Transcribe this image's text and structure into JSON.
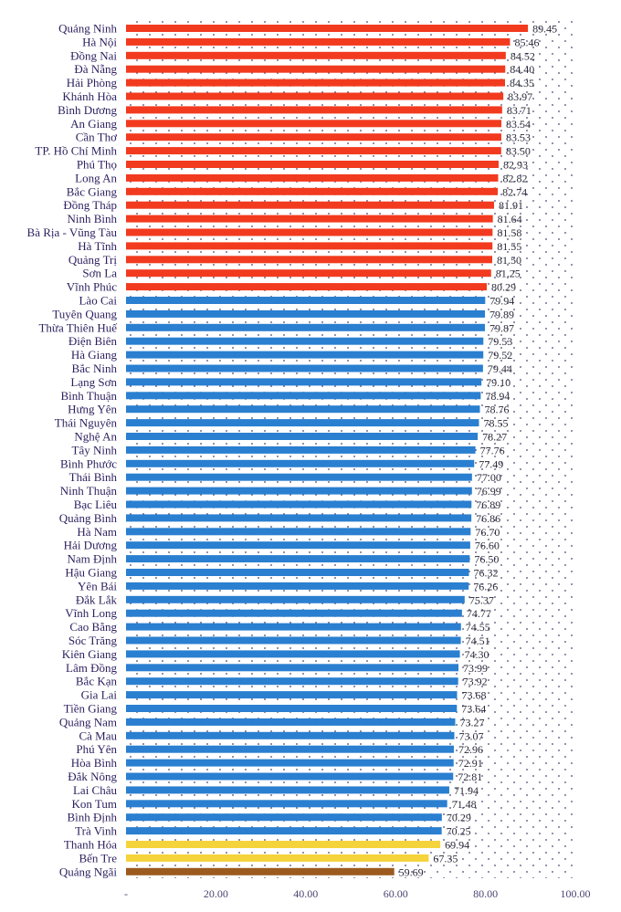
{
  "chart_data": {
    "type": "bar",
    "orientation": "horizontal",
    "title": "",
    "xlabel": "",
    "ylabel": "",
    "xlim": [
      0,
      100
    ],
    "x_ticks": [
      0,
      20,
      40,
      60,
      80,
      100
    ],
    "x_tick_labels": [
      "-",
      "20.00",
      "40.00",
      "60.00",
      "80.00",
      "100.00"
    ],
    "grid": false,
    "legend": "none",
    "colors": {
      "red": "#f23a1f",
      "blue": "#2a7fd0",
      "yellow": "#f5d33a",
      "brown": "#9c5a1e",
      "label": "#2c1f5e"
    },
    "categories": [
      "Quảng Ninh",
      "Hà Nội",
      "Đồng Nai",
      "Đà Nẵng",
      "Hải Phòng",
      "Khánh Hòa",
      "Bình Dương",
      "An Giang",
      "Cần Thơ",
      "TP. Hồ Chí Minh",
      "Phú Thọ",
      "Long An",
      "Bắc Giang",
      "Đồng Tháp",
      "Ninh Bình",
      "Bà Rịa - Vũng Tàu",
      "Hà Tĩnh",
      "Quảng Trị",
      "Sơn La",
      "Vĩnh Phúc",
      "Lào Cai",
      "Tuyên Quang",
      "Thừa Thiên Huế",
      "Điện Biên",
      "Hà Giang",
      "Bắc Ninh",
      "Lạng Sơn",
      "Bình Thuận",
      "Hưng Yên",
      "Thái Nguyên",
      "Nghệ An",
      "Tây Ninh",
      "Bình Phước",
      "Thái Bình",
      "Ninh Thuận",
      "Bạc Liêu",
      "Quảng Bình",
      "Hà Nam",
      "Hải Dương",
      "Nam Định",
      "Hậu Giang",
      "Yên Bái",
      "Đắk Lắk",
      "Vĩnh Long",
      "Cao Bằng",
      "Sóc Trăng",
      "Kiên Giang",
      "Lâm Đồng",
      "Bắc Kạn",
      "Gia Lai",
      "Tiền Giang",
      "Quảng Nam",
      "Cà Mau",
      "Phú Yên",
      "Hòa Bình",
      "Đắk Nông",
      "Lai Châu",
      "Kon Tum",
      "Bình Định",
      "Trà Vinh",
      "Thanh Hóa",
      "Bến Tre",
      "Quảng Ngãi"
    ],
    "values": [
      89.45,
      85.46,
      84.52,
      84.4,
      84.35,
      83.97,
      83.71,
      83.54,
      83.53,
      83.5,
      82.93,
      82.82,
      82.74,
      81.91,
      81.64,
      81.58,
      81.55,
      81.5,
      81.25,
      80.29,
      79.94,
      79.89,
      79.87,
      79.53,
      79.52,
      79.44,
      79.1,
      78.94,
      78.76,
      78.55,
      78.27,
      77.76,
      77.49,
      77.0,
      76.99,
      76.89,
      76.86,
      76.7,
      76.6,
      76.5,
      76.32,
      76.26,
      75.37,
      74.77,
      74.55,
      74.51,
      74.3,
      73.99,
      73.92,
      73.68,
      73.64,
      73.27,
      73.07,
      72.96,
      72.91,
      72.81,
      71.94,
      71.48,
      70.29,
      70.25,
      69.94,
      67.35,
      59.69
    ],
    "value_labels": [
      "89.45",
      "85.46",
      "84.52",
      "84.40",
      "84.35",
      "83.97",
      "83.71",
      "83.54",
      "83.53",
      "83.50",
      "82.93",
      "82.82",
      "82.74",
      "81.91",
      "81.64",
      "81.58",
      "81.55",
      "81.50",
      "81.25",
      "80.29",
      "79.94",
      "79.89",
      "79.87",
      "79.53",
      "79.52",
      "79.44",
      "79.10",
      "78.94",
      "78.76",
      "78.55",
      "78.27",
      "77.76",
      "77.49",
      "77.00",
      "76.99",
      "76.89",
      "76.86",
      "76.70",
      "76.60",
      "76.50",
      "76.32",
      "76.26",
      "75.37",
      "74.77",
      "74.55",
      "74.51",
      "74.30",
      "73.99",
      "73.92",
      "73.68",
      "73.64",
      "73.27",
      "73.07",
      "72.96",
      "72.91",
      "72.81",
      "71.94",
      "71.48",
      "70.29",
      "70.25",
      "69.94",
      "67.35",
      "59.69"
    ],
    "bar_colors": [
      "red",
      "red",
      "red",
      "red",
      "red",
      "red",
      "red",
      "red",
      "red",
      "red",
      "red",
      "red",
      "red",
      "red",
      "red",
      "red",
      "red",
      "red",
      "red",
      "red",
      "blue",
      "blue",
      "blue",
      "blue",
      "blue",
      "blue",
      "blue",
      "blue",
      "blue",
      "blue",
      "blue",
      "blue",
      "blue",
      "blue",
      "blue",
      "blue",
      "blue",
      "blue",
      "blue",
      "blue",
      "blue",
      "blue",
      "blue",
      "blue",
      "blue",
      "blue",
      "blue",
      "blue",
      "blue",
      "blue",
      "blue",
      "blue",
      "blue",
      "blue",
      "blue",
      "blue",
      "blue",
      "blue",
      "blue",
      "blue",
      "yellow",
      "yellow",
      "brown"
    ]
  }
}
